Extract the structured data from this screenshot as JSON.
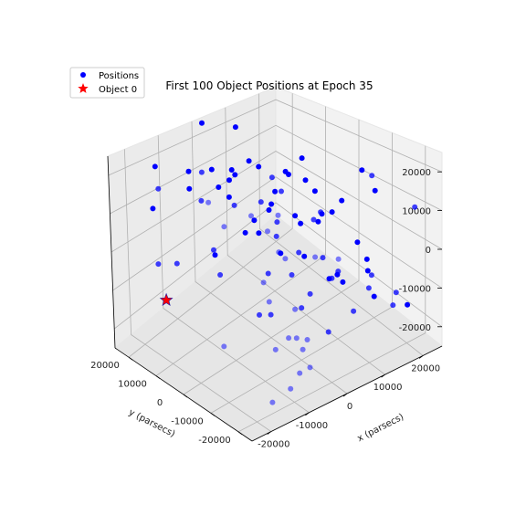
{
  "chart_data": {
    "type": "scatter3d",
    "title": "First 100 Object Positions at Epoch 35",
    "xlabel": "x (parsecs)",
    "ylabel": "y (parsecs)",
    "zlabel": "",
    "xticks": [
      "-20000",
      "-10000",
      "0",
      "10000",
      "20000"
    ],
    "yticks": [
      "-20000",
      "-10000",
      "0",
      "10000",
      "20000"
    ],
    "zticks": [
      "-20000",
      "-10000",
      "0",
      "10000",
      "20000"
    ],
    "xlim": [
      -25000,
      25000
    ],
    "ylim": [
      -25000,
      25000
    ],
    "zlim": [
      -25000,
      25000
    ],
    "grid": true,
    "legend_position": "top-left",
    "colors": {
      "positions": "#0000ff",
      "object0": "#ff0000"
    },
    "series": [
      {
        "name": "Positions",
        "marker": "circle",
        "points": [
          [
            -16000,
            20000,
            21000
          ],
          [
            -22000,
            -2000,
            24000
          ],
          [
            -9000,
            17000,
            18000
          ],
          [
            -21000,
            8000,
            3000
          ],
          [
            -21000,
            14000,
            0
          ],
          [
            -5000,
            21000,
            9000
          ],
          [
            -19000,
            -6000,
            -13000
          ],
          [
            -5000,
            13000,
            -6000
          ],
          [
            -15000,
            22000,
            8000
          ],
          [
            -7000,
            12000,
            20000
          ],
          [
            -11000,
            1000,
            17000
          ],
          [
            1000,
            23000,
            25000
          ],
          [
            -12000,
            6000,
            3000
          ],
          [
            -3000,
            14000,
            12000
          ],
          [
            -20000,
            15000,
            19000
          ],
          [
            -15000,
            7000,
            25000
          ],
          [
            4000,
            13000,
            -5000
          ],
          [
            -4000,
            8000,
            19000
          ],
          [
            -13000,
            -14000,
            22000
          ],
          [
            10000,
            18000,
            11000
          ],
          [
            -18000,
            4000,
            20000
          ],
          [
            -6000,
            -2000,
            17000
          ],
          [
            -10000,
            -7000,
            -9000
          ],
          [
            4000,
            18000,
            3000
          ],
          [
            -1000,
            -3000,
            18000
          ],
          [
            -16000,
            -9000,
            21000
          ],
          [
            -15000,
            -13000,
            5000
          ],
          [
            2000,
            -10000,
            12000
          ],
          [
            -22000,
            -7000,
            20000
          ],
          [
            -11000,
            -13000,
            11000
          ],
          [
            -6000,
            -5000,
            25000
          ],
          [
            -3000,
            10000,
            19000
          ],
          [
            -12000,
            -15000,
            -13000
          ],
          [
            -18000,
            -16000,
            21000
          ],
          [
            -1000,
            5000,
            6000
          ],
          [
            6000,
            20000,
            6000
          ],
          [
            7000,
            12000,
            14000
          ],
          [
            -14000,
            -18000,
            13000
          ],
          [
            4000,
            5000,
            8000
          ],
          [
            -7000,
            -6000,
            0
          ],
          [
            -2000,
            -3000,
            10000
          ],
          [
            -9000,
            7000,
            -6000
          ],
          [
            12000,
            8000,
            11000
          ],
          [
            3000,
            -11000,
            14000
          ],
          [
            8000,
            8000,
            8000
          ],
          [
            9000,
            21000,
            21000
          ],
          [
            -5000,
            -6000,
            9000
          ],
          [
            14000,
            2000,
            8000
          ],
          [
            13000,
            5000,
            17000
          ],
          [
            5000,
            -3000,
            6000
          ],
          [
            9000,
            14000,
            -9000
          ],
          [
            -3000,
            -3000,
            -15000
          ],
          [
            13000,
            15000,
            -5000
          ],
          [
            -5000,
            -13000,
            8000
          ],
          [
            6000,
            4000,
            -7000
          ],
          [
            -8000,
            -17000,
            -11000
          ],
          [
            20000,
            -6000,
            15000
          ],
          [
            -14000,
            -21000,
            -6000
          ],
          [
            14000,
            8000,
            -3000
          ],
          [
            -2000,
            -14000,
            -4000
          ],
          [
            7000,
            -8000,
            -2000
          ],
          [
            -9000,
            -17000,
            -3000
          ],
          [
            16000,
            3000,
            -3000
          ],
          [
            15000,
            12000,
            8000
          ],
          [
            -1000,
            -7000,
            -3000
          ],
          [
            19000,
            10000,
            4000
          ],
          [
            -12000,
            -12000,
            -2000
          ],
          [
            19000,
            -1000,
            4000
          ],
          [
            -7000,
            -20000,
            11000
          ],
          [
            12000,
            3000,
            -11000
          ],
          [
            4000,
            -5000,
            -16000
          ],
          [
            -4000,
            -16000,
            -14000
          ],
          [
            22000,
            5000,
            -5000
          ],
          [
            -10000,
            -21000,
            -17000
          ],
          [
            9000,
            -8000,
            -9000
          ],
          [
            3000,
            -17000,
            1000
          ],
          [
            -6000,
            -17000,
            -15000
          ],
          [
            -14000,
            -23000,
            -18000
          ],
          [
            20000,
            6000,
            -5000
          ],
          [
            -2000,
            -22000,
            9000
          ],
          [
            11000,
            -18000,
            23000
          ],
          [
            6000,
            -12000,
            -5000
          ],
          [
            1000,
            -17000,
            -14000
          ],
          [
            6000,
            -19000,
            -10000
          ],
          [
            20000,
            -10000,
            11000
          ],
          [
            12000,
            -9000,
            -11000
          ],
          [
            -9000,
            -23000,
            -15000
          ],
          [
            16000,
            -3000,
            -15000
          ],
          [
            15000,
            -13000,
            -4000
          ],
          [
            16000,
            -9000,
            -2000
          ],
          [
            12000,
            -17000,
            -8000
          ],
          [
            20000,
            -22000,
            12000
          ],
          [
            -17000,
            -21000,
            -21000
          ],
          [
            20000,
            -8000,
            -13000
          ],
          [
            16000,
            -21000,
            -9000
          ],
          [
            7000,
            -23000,
            1000
          ],
          [
            17000,
            -19000,
            -14000
          ],
          [
            21000,
            -19000,
            -16000
          ],
          [
            20000,
            -10000,
            -19000
          ]
        ]
      },
      {
        "name": "Object 0",
        "marker": "star",
        "points": [
          [
            -24000,
            8000,
            -5000
          ]
        ]
      }
    ]
  }
}
